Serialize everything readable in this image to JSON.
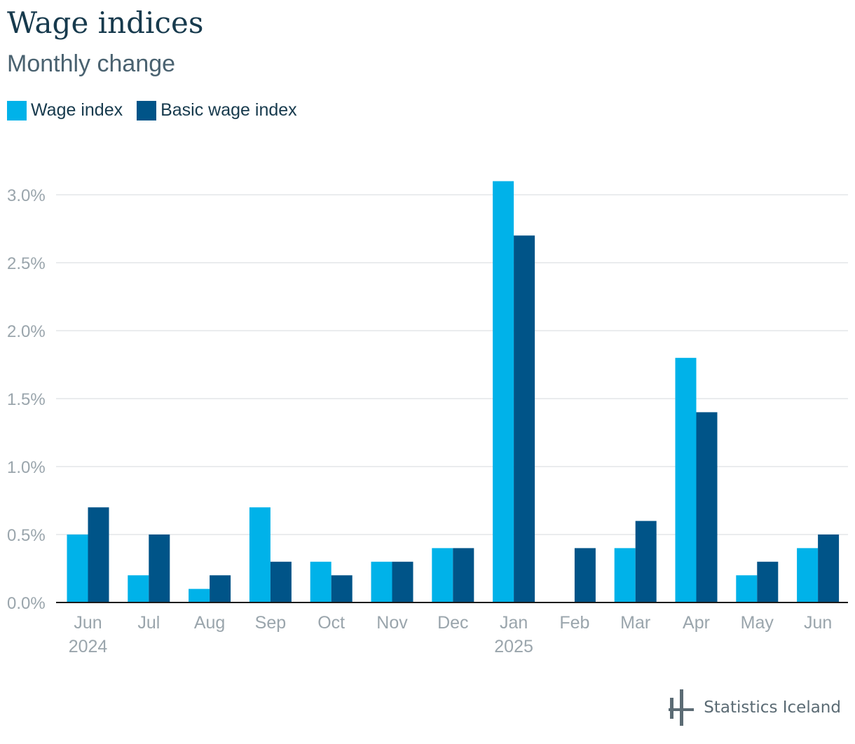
{
  "header": {
    "title": "Wage indices",
    "subtitle": "Monthly change"
  },
  "colors": {
    "wage_index": "#00b2e9",
    "basic_wage_index": "#005488",
    "grid": "#e3e6e8",
    "axis": "#1b1b1b",
    "tick_text": "#9aa5ac"
  },
  "branding": {
    "name": "Statistics Iceland",
    "icon": "statistics-iceland-logo-icon"
  },
  "chart_data": {
    "type": "bar",
    "title": "Wage indices",
    "subtitle": "Monthly change",
    "categories": [
      "Jun",
      "Jul",
      "Aug",
      "Sep",
      "Oct",
      "Nov",
      "Dec",
      "Jan",
      "Feb",
      "Mar",
      "Apr",
      "May",
      "Jun"
    ],
    "year_labels": [
      "2024",
      "",
      "",
      "",
      "",
      "",
      "",
      "2025",
      "",
      "",
      "",
      "",
      ""
    ],
    "series": [
      {
        "name": "Wage index",
        "values": [
          0.5,
          0.2,
          0.1,
          0.7,
          0.3,
          0.3,
          0.4,
          3.1,
          0.0,
          0.4,
          1.8,
          0.2,
          0.4
        ]
      },
      {
        "name": "Basic wage index",
        "values": [
          0.7,
          0.5,
          0.2,
          0.3,
          0.2,
          0.3,
          0.4,
          2.7,
          0.4,
          0.6,
          1.4,
          0.3,
          0.5
        ]
      }
    ],
    "y_ticks": [
      "0.0%",
      "0.5%",
      "1.0%",
      "1.5%",
      "2.0%",
      "2.5%",
      "3.0%"
    ],
    "ylim": [
      0,
      3.2
    ],
    "grid": true,
    "legend": "top-left",
    "unit": "%"
  }
}
